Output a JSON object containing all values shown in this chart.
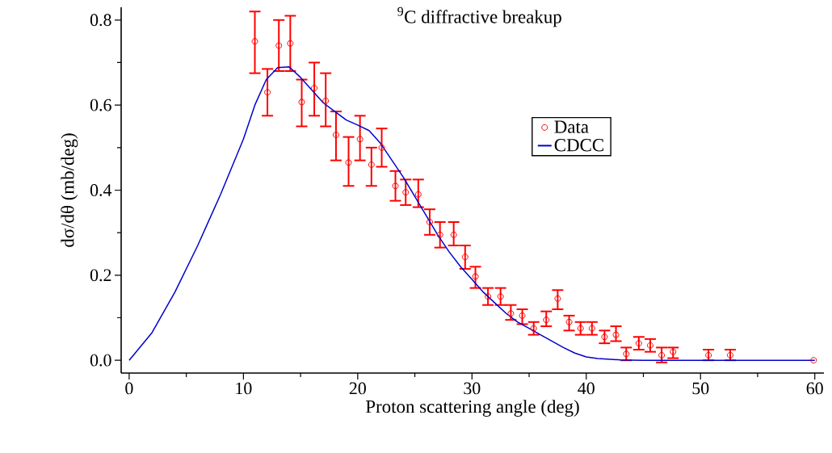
{
  "chart_data": {
    "type": "scatter",
    "title": "$^{9}$C diffractive breakup",
    "xlabel": "Proton scattering angle (deg)",
    "ylabel": "dσ/dθ  (mb/deg)",
    "xlim": [
      -0.7,
      60.8
    ],
    "ylim": [
      -0.03,
      0.83
    ],
    "xticks": [
      0,
      10,
      20,
      30,
      40,
      50,
      60
    ],
    "yticks": [
      {
        "value": 0,
        "label": "0.0"
      },
      {
        "value": 0.2,
        "label": "0.2"
      },
      {
        "value": 0.4,
        "label": "0.4"
      },
      {
        "value": 0.6,
        "label": "0.6"
      },
      {
        "value": 0.8,
        "label": "0.8"
      }
    ],
    "grid": false,
    "legend": "right",
    "series": [
      {
        "name": "Data",
        "type": "scatter",
        "color": "#ff0000",
        "marker": "circle",
        "x": [
          11.0,
          12.1,
          13.1,
          14.1,
          15.1,
          16.2,
          17.2,
          18.1,
          19.2,
          20.2,
          21.2,
          22.1,
          23.3,
          24.2,
          25.3,
          26.3,
          27.2,
          28.4,
          29.4,
          30.3,
          31.4,
          32.5,
          33.4,
          34.4,
          35.4,
          36.5,
          37.5,
          38.5,
          39.5,
          40.5,
          41.6,
          42.6,
          43.5,
          44.6,
          45.6,
          46.6,
          47.6,
          50.7,
          52.6,
          59.9
        ],
        "values": [
          0.75,
          0.63,
          0.74,
          0.745,
          0.607,
          0.64,
          0.61,
          0.53,
          0.465,
          0.52,
          0.46,
          0.5,
          0.41,
          0.395,
          0.39,
          0.325,
          0.295,
          0.295,
          0.243,
          0.197,
          0.15,
          0.15,
          0.11,
          0.105,
          0.075,
          0.095,
          0.145,
          0.09,
          0.075,
          0.075,
          0.055,
          0.06,
          0.015,
          0.04,
          0.035,
          0.012,
          0.02,
          0.012,
          0.012,
          0
        ],
        "errors": [
          [
            0.675,
            0.82
          ],
          [
            0.575,
            0.685
          ],
          [
            0.68,
            0.8
          ],
          [
            0.68,
            0.81
          ],
          [
            0.55,
            0.66
          ],
          [
            0.575,
            0.7
          ],
          [
            0.55,
            0.675
          ],
          [
            0.47,
            0.585
          ],
          [
            0.41,
            0.525
          ],
          [
            0.47,
            0.575
          ],
          [
            0.41,
            0.5
          ],
          [
            0.455,
            0.545
          ],
          [
            0.375,
            0.445
          ],
          [
            0.365,
            0.425
          ],
          [
            0.36,
            0.425
          ],
          [
            0.295,
            0.355
          ],
          [
            0.265,
            0.325
          ],
          [
            0.27,
            0.325
          ],
          [
            0.215,
            0.27
          ],
          [
            0.17,
            0.22
          ],
          [
            0.13,
            0.17
          ],
          [
            0.13,
            0.17
          ],
          [
            0.095,
            0.13
          ],
          [
            0.085,
            0.12
          ],
          [
            0.06,
            0.09
          ],
          [
            0.08,
            0.115
          ],
          [
            0.12,
            0.165
          ],
          [
            0.07,
            0.105
          ],
          [
            0.06,
            0.09
          ],
          [
            0.06,
            0.09
          ],
          [
            0.04,
            0.07
          ],
          [
            0.045,
            0.08
          ],
          [
            0.0,
            0.03
          ],
          [
            0.025,
            0.055
          ],
          [
            0.02,
            0.05
          ],
          [
            -0.005,
            0.03
          ],
          [
            0.005,
            0.03
          ],
          [
            0.0,
            0.025
          ],
          [
            0.0,
            0.025
          ],
          null
        ]
      },
      {
        "name": "CDCC",
        "type": "line",
        "color": "#0000cc",
        "x": [
          0,
          2,
          4,
          6,
          8,
          10,
          11,
          12,
          13,
          14,
          15,
          16,
          17,
          18,
          19,
          20,
          21,
          22,
          23,
          24,
          25,
          26,
          27,
          28,
          29,
          30,
          31,
          32,
          33,
          34,
          35,
          36,
          37,
          38,
          39,
          40,
          41,
          43,
          45,
          60
        ],
        "values": [
          0,
          0.065,
          0.16,
          0.27,
          0.39,
          0.52,
          0.6,
          0.66,
          0.688,
          0.69,
          0.665,
          0.635,
          0.605,
          0.585,
          0.565,
          0.553,
          0.54,
          0.51,
          0.47,
          0.43,
          0.385,
          0.34,
          0.295,
          0.255,
          0.22,
          0.19,
          0.16,
          0.135,
          0.11,
          0.09,
          0.075,
          0.06,
          0.045,
          0.03,
          0.017,
          0.008,
          0.004,
          0.001,
          0,
          0
        ]
      }
    ]
  }
}
